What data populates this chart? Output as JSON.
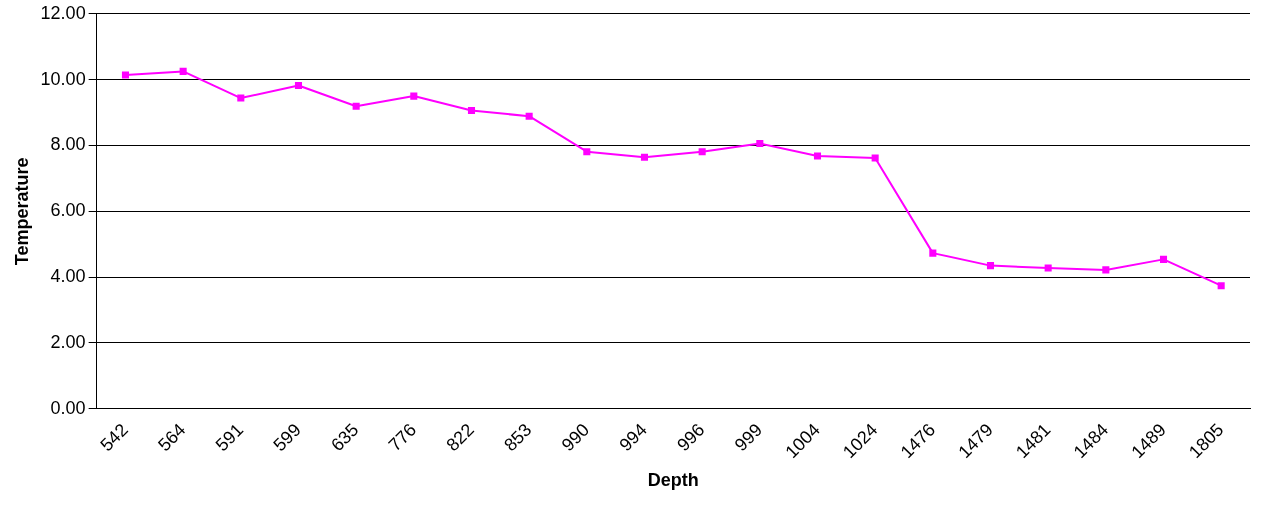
{
  "chart_data": {
    "type": "line",
    "xlabel": "Depth",
    "ylabel": "Temperature",
    "categories": [
      "542",
      "564",
      "591",
      "599",
      "635",
      "776",
      "822",
      "853",
      "990",
      "994",
      "996",
      "999",
      "1004",
      "1024",
      "1476",
      "1479",
      "1481",
      "1484",
      "1489",
      "1805"
    ],
    "series": [
      {
        "color": "#ff00ff",
        "values": [
          10.14,
          10.25,
          9.44,
          9.82,
          9.19,
          9.5,
          9.06,
          8.89,
          7.81,
          7.64,
          7.81,
          8.06,
          7.68,
          7.62,
          4.73,
          4.35,
          4.28,
          4.22,
          4.54,
          3.74
        ]
      }
    ],
    "ylim": [
      0,
      12
    ],
    "yticks": [
      {
        "value": 0,
        "label": "0.00"
      },
      {
        "value": 2,
        "label": "2.00"
      },
      {
        "value": 4,
        "label": "4.00"
      },
      {
        "value": 6,
        "label": "6.00"
      },
      {
        "value": 8,
        "label": "8.00"
      },
      {
        "value": 10,
        "label": "10.00"
      },
      {
        "value": 12,
        "label": "12.00"
      }
    ],
    "grid": "y",
    "marker": "square",
    "line_style": "solid"
  }
}
